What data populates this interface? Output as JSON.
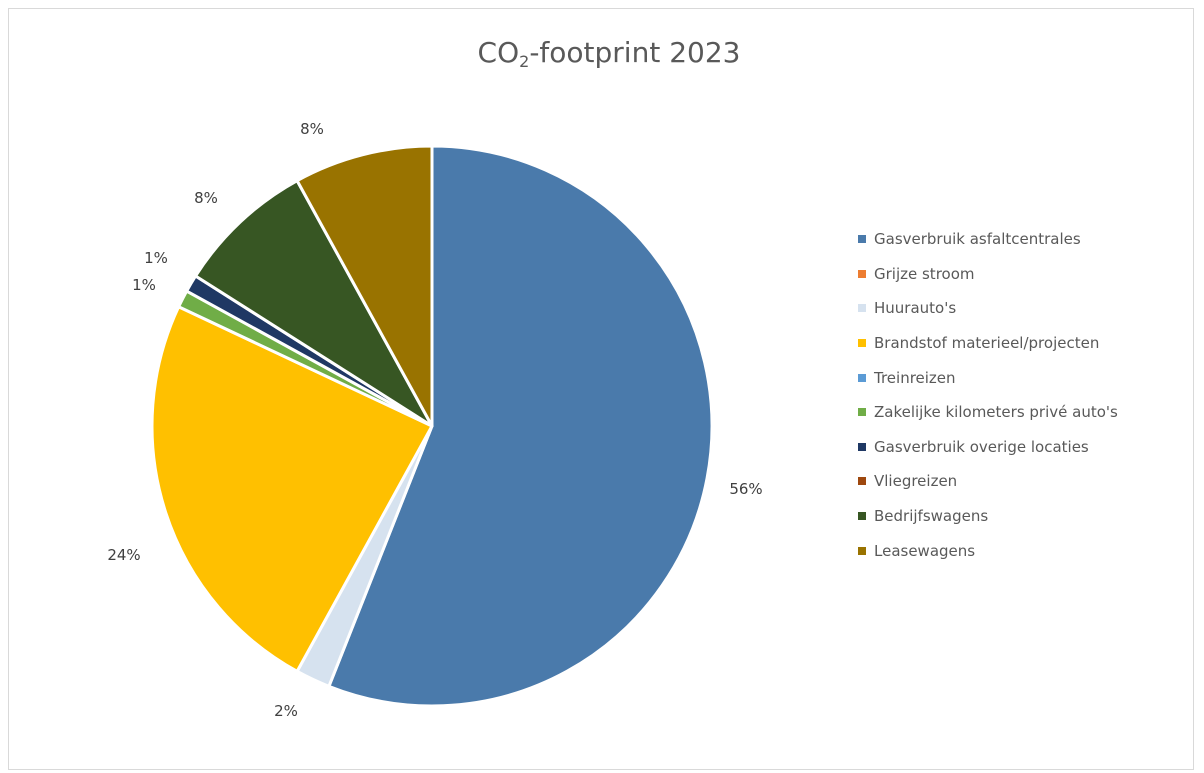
{
  "chart_data": {
    "type": "pie",
    "title_main": "CO",
    "title_sub": "2",
    "title_rest": "-footprint 2023",
    "categories": [
      "Gasverbruik asfaltcentrales",
      "Grijze stroom",
      "Huurauto's",
      "Brandstof materieel/projecten",
      "Treinreizen",
      "Zakelijke kilometers privé auto's",
      "Gasverbruik overige locaties",
      "Vliegreizen",
      "Bedrijfswagens",
      "Leasewagens"
    ],
    "values": [
      56,
      0,
      2,
      24,
      0,
      1,
      1,
      0,
      8,
      8
    ],
    "data_labels": [
      "56%",
      "",
      "2%",
      "24%",
      "",
      "1%",
      "1%",
      "",
      "8%",
      "8%"
    ],
    "colors": [
      "#4a7aab",
      "#ed7d31",
      "#d6e2ef",
      "#ffc000",
      "#5b9bd5",
      "#70ad47",
      "#1f3864",
      "#9e480e",
      "#375623",
      "#997300"
    ],
    "legend_position": "right"
  }
}
